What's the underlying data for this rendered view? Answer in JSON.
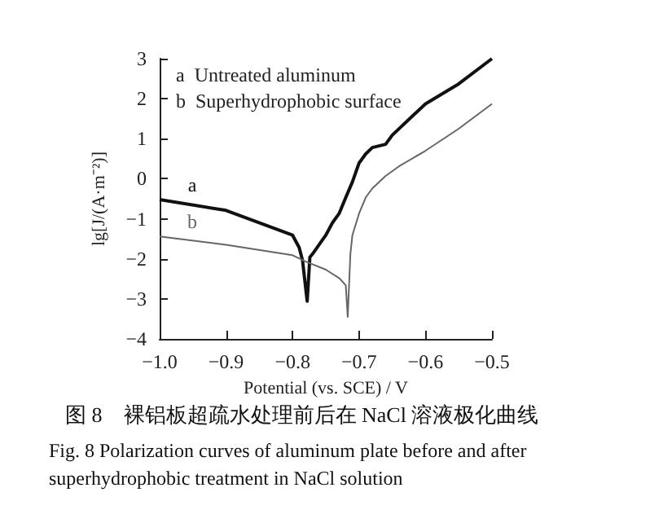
{
  "chart_data": {
    "type": "line",
    "title": "图 8　裸铝板超疏水处理前后在 NaCl 溶液极化曲线",
    "subtitle": "Fig. 8 Polarization curves of aluminum plate before and after superhydrophobic treatment in NaCl solution",
    "xlabel": "Potential (vs. SCE) / V",
    "ylabel": "lg[J/(A·m⁻²)]",
    "annotations": [
      "a  Untreated aluminum",
      "b  Superhydrophobic surface"
    ],
    "xlim": [
      -1.0,
      -0.5
    ],
    "ylim": [
      -4,
      3
    ],
    "xticks": [
      {
        "value": -1.0,
        "label": "−1.0"
      },
      {
        "value": -0.9,
        "label": "−0.9"
      },
      {
        "value": -0.8,
        "label": "−0.8"
      },
      {
        "value": -0.7,
        "label": "−0.7"
      },
      {
        "value": -0.6,
        "label": "−0.6"
      },
      {
        "value": -0.5,
        "label": "−0.5"
      }
    ],
    "yticks": [
      -4,
      -3,
      -2,
      -1,
      0,
      1,
      2,
      3
    ],
    "grid": false,
    "legend": false,
    "marker": "none",
    "line_style": "solid",
    "series": [
      {
        "name": "a",
        "color": "#111111",
        "x": [
          -1.0,
          -0.9,
          -0.8,
          -0.79,
          -0.785,
          -0.778,
          -0.774,
          -0.77,
          -0.75,
          -0.74,
          -0.73,
          -0.72,
          -0.71,
          -0.7,
          -0.69,
          -0.68,
          -0.66,
          -0.65,
          -0.62,
          -0.6,
          -0.55,
          -0.5
        ],
        "values": [
          -0.52,
          -0.79,
          -1.41,
          -1.72,
          -2.04,
          -3.06,
          -1.96,
          -1.88,
          -1.41,
          -1.1,
          -0.87,
          -0.47,
          -0.08,
          0.39,
          0.62,
          0.78,
          0.86,
          1.09,
          1.56,
          1.87,
          2.37,
          3.0
        ]
      },
      {
        "name": "b",
        "color": "#666666",
        "x": [
          -1.0,
          -0.9,
          -0.8,
          -0.78,
          -0.75,
          -0.73,
          -0.72,
          -0.717,
          -0.713,
          -0.71,
          -0.7,
          -0.69,
          -0.68,
          -0.66,
          -0.64,
          -0.6,
          -0.55,
          -0.5
        ],
        "values": [
          -1.44,
          -1.65,
          -1.91,
          -2.07,
          -2.27,
          -2.48,
          -2.66,
          -3.45,
          -1.88,
          -1.41,
          -0.87,
          -0.47,
          -0.24,
          0.07,
          0.31,
          0.7,
          1.25,
          1.87
        ]
      }
    ]
  }
}
